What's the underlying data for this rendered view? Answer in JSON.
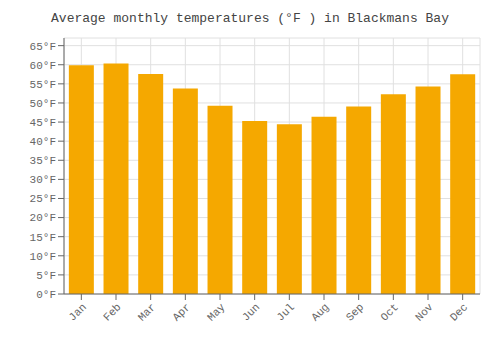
{
  "chart_data": {
    "type": "bar",
    "title": "Average monthly temperatures (°F ) in Blackmans Bay",
    "categories": [
      "Jan",
      "Feb",
      "Mar",
      "Apr",
      "May",
      "Jun",
      "Jul",
      "Aug",
      "Sep",
      "Oct",
      "Nov",
      "Dec"
    ],
    "values": [
      59.9,
      60.3,
      57.6,
      53.8,
      49.3,
      45.3,
      44.4,
      46.4,
      49.1,
      52.3,
      54.3,
      57.5
    ],
    "color": "#F5A800",
    "ylim": [
      0,
      67
    ],
    "yticks": [
      {
        "value": 0,
        "label": "0°F"
      },
      {
        "value": 5,
        "label": "5°F"
      },
      {
        "value": 10,
        "label": "10°F"
      },
      {
        "value": 15,
        "label": "15°F"
      },
      {
        "value": 20,
        "label": "20°F"
      },
      {
        "value": 25,
        "label": "25°F"
      },
      {
        "value": 30,
        "label": "30°F"
      },
      {
        "value": 35,
        "label": "35°F"
      },
      {
        "value": 40,
        "label": "40°F"
      },
      {
        "value": 45,
        "label": "45°F"
      },
      {
        "value": 50,
        "label": "50°F"
      },
      {
        "value": 55,
        "label": "55°F"
      },
      {
        "value": 60,
        "label": "60°F"
      },
      {
        "value": 65,
        "label": "65°F"
      }
    ],
    "grid": true
  }
}
